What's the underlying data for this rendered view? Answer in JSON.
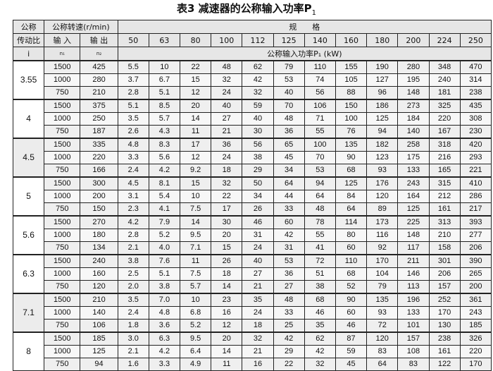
{
  "title": {
    "text": "表3  减速器的公称输入功率P",
    "subscript": "1"
  },
  "header": {
    "ratio_label_1": "公称",
    "ratio_label_2": "传动比",
    "ratio_label_3": "i",
    "speed_label": "公称转速(r/min)",
    "input_label": "输 入",
    "input_symbol": "n₁",
    "output_label": "输 出",
    "output_symbol": "n₂",
    "spec_label": "规　　格",
    "sizes": [
      "50",
      "63",
      "80",
      "100",
      "112",
      "125",
      "140",
      "160",
      "180",
      "200",
      "224",
      "250"
    ],
    "power_label": "公称输入功率P₁ (kW)"
  },
  "groups": [
    {
      "ratio": "3.55",
      "rows": [
        {
          "n1": "1500",
          "n2": "425",
          "p": [
            "5.5",
            "10",
            "22",
            "48",
            "62",
            "79",
            "110",
            "155",
            "190",
            "280",
            "348",
            "470"
          ]
        },
        {
          "n1": "1000",
          "n2": "280",
          "p": [
            "3.7",
            "6.7",
            "15",
            "32",
            "42",
            "53",
            "74",
            "105",
            "127",
            "195",
            "240",
            "314"
          ]
        },
        {
          "n1": "750",
          "n2": "210",
          "p": [
            "2.8",
            "5.1",
            "12",
            "24",
            "32",
            "40",
            "56",
            "88",
            "96",
            "148",
            "181",
            "238"
          ]
        }
      ]
    },
    {
      "ratio": "4",
      "rows": [
        {
          "n1": "1500",
          "n2": "375",
          "p": [
            "5.1",
            "8.5",
            "20",
            "40",
            "59",
            "70",
            "106",
            "150",
            "186",
            "273",
            "325",
            "435"
          ]
        },
        {
          "n1": "1000",
          "n2": "250",
          "p": [
            "3.5",
            "5.7",
            "14",
            "27",
            "40",
            "48",
            "71",
            "100",
            "125",
            "184",
            "220",
            "308"
          ]
        },
        {
          "n1": "750",
          "n2": "187",
          "p": [
            "2.6",
            "4.3",
            "11",
            "21",
            "30",
            "36",
            "55",
            "76",
            "94",
            "140",
            "167",
            "230"
          ]
        }
      ]
    },
    {
      "ratio": "4.5",
      "rows": [
        {
          "n1": "1500",
          "n2": "335",
          "p": [
            "4.8",
            "8.3",
            "17",
            "36",
            "56",
            "65",
            "100",
            "135",
            "182",
            "258",
            "318",
            "420"
          ]
        },
        {
          "n1": "1000",
          "n2": "220",
          "p": [
            "3.3",
            "5.6",
            "12",
            "24",
            "38",
            "45",
            "70",
            "90",
            "123",
            "175",
            "216",
            "293"
          ]
        },
        {
          "n1": "750",
          "n2": "166",
          "p": [
            "2.4",
            "4.2",
            "9.2",
            "18",
            "29",
            "34",
            "53",
            "68",
            "93",
            "133",
            "165",
            "221"
          ]
        }
      ]
    },
    {
      "ratio": "5",
      "rows": [
        {
          "n1": "1500",
          "n2": "300",
          "p": [
            "4.5",
            "8.1",
            "15",
            "32",
            "50",
            "64",
            "94",
            "125",
            "176",
            "243",
            "315",
            "410"
          ]
        },
        {
          "n1": "1000",
          "n2": "200",
          "p": [
            "3.1",
            "5.4",
            "10",
            "22",
            "34",
            "44",
            "64",
            "84",
            "120",
            "164",
            "212",
            "286"
          ]
        },
        {
          "n1": "750",
          "n2": "150",
          "p": [
            "2.3",
            "4.1",
            "7.5",
            "17",
            "26",
            "33",
            "48",
            "64",
            "89",
            "125",
            "161",
            "217"
          ]
        }
      ]
    },
    {
      "ratio": "5.6",
      "rows": [
        {
          "n1": "1500",
          "n2": "270",
          "p": [
            "4.2",
            "7.9",
            "14",
            "30",
            "46",
            "60",
            "78",
            "114",
            "173",
            "225",
            "313",
            "393"
          ]
        },
        {
          "n1": "1000",
          "n2": "180",
          "p": [
            "2.8",
            "5.2",
            "9.5",
            "20",
            "31",
            "42",
            "55",
            "80",
            "116",
            "148",
            "210",
            "277"
          ]
        },
        {
          "n1": "750",
          "n2": "134",
          "p": [
            "2.1",
            "4.0",
            "7.1",
            "15",
            "24",
            "31",
            "41",
            "60",
            "92",
            "117",
            "158",
            "206"
          ]
        }
      ]
    },
    {
      "ratio": "6.3",
      "rows": [
        {
          "n1": "1500",
          "n2": "240",
          "p": [
            "3.8",
            "7.6",
            "11",
            "26",
            "40",
            "53",
            "72",
            "110",
            "170",
            "211",
            "301",
            "390"
          ]
        },
        {
          "n1": "1000",
          "n2": "160",
          "p": [
            "2.5",
            "5.1",
            "7.5",
            "18",
            "27",
            "36",
            "51",
            "68",
            "104",
            "146",
            "206",
            "265"
          ]
        },
        {
          "n1": "750",
          "n2": "120",
          "p": [
            "2.0",
            "3.8",
            "5.7",
            "14",
            "21",
            "27",
            "38",
            "52",
            "79",
            "113",
            "157",
            "200"
          ]
        }
      ]
    },
    {
      "ratio": "7.1",
      "rows": [
        {
          "n1": "1500",
          "n2": "210",
          "p": [
            "3.5",
            "7.0",
            "10",
            "23",
            "35",
            "48",
            "68",
            "90",
            "135",
            "196",
            "252",
            "361"
          ]
        },
        {
          "n1": "1000",
          "n2": "140",
          "p": [
            "2.4",
            "4.8",
            "6.8",
            "16",
            "24",
            "33",
            "46",
            "60",
            "93",
            "133",
            "170",
            "243"
          ]
        },
        {
          "n1": "750",
          "n2": "106",
          "p": [
            "1.8",
            "3.6",
            "5.2",
            "12",
            "18",
            "25",
            "35",
            "46",
            "72",
            "101",
            "130",
            "185"
          ]
        }
      ]
    },
    {
      "ratio": "8",
      "rows": [
        {
          "n1": "1500",
          "n2": "185",
          "p": [
            "3.0",
            "6.3",
            "9.5",
            "20",
            "32",
            "42",
            "62",
            "87",
            "120",
            "157",
            "238",
            "326"
          ]
        },
        {
          "n1": "1000",
          "n2": "125",
          "p": [
            "2.1",
            "4.2",
            "6.4",
            "14",
            "21",
            "29",
            "42",
            "59",
            "83",
            "108",
            "161",
            "220"
          ]
        },
        {
          "n1": "750",
          "n2": "94",
          "p": [
            "1.6",
            "3.3",
            "4.9",
            "11",
            "16",
            "22",
            "32",
            "45",
            "64",
            "83",
            "122",
            "170"
          ]
        }
      ]
    }
  ]
}
